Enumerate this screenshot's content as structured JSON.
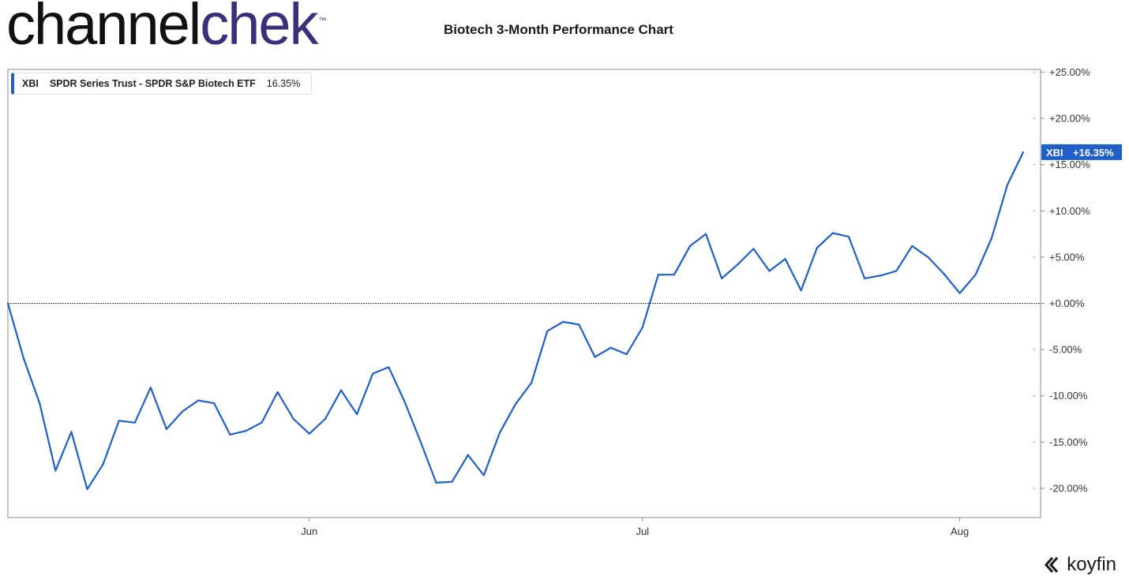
{
  "logo": {
    "part1": "channel",
    "part2": "chek",
    "tm": "™"
  },
  "title": "Biotech 3-Month Performance Chart",
  "brand": "koyfin",
  "colors": {
    "series": "#1f5fc9",
    "logo_dark": "#111111",
    "logo_accent": "#3a2f7a"
  },
  "legend": {
    "ticker": "XBI",
    "name": "SPDR Series Trust - SPDR S&P Biotech ETF",
    "value": "16.35%"
  },
  "chart_data": {
    "type": "line",
    "y_unit": "percent",
    "ylim": [
      -23,
      25.5
    ],
    "yticks": [
      25,
      20,
      15,
      10,
      5,
      0,
      -5,
      -10,
      -15,
      -20
    ],
    "ytick_labels": [
      "+25.00%",
      "+20.00%",
      "+15.00%",
      "+10.00%",
      "+5.00%",
      "+0.00%",
      "-5.00%",
      "-10.00%",
      "-15.00%",
      "-20.00%"
    ],
    "xticks": [
      "Jun",
      "Jul",
      "Aug"
    ],
    "xtick_index": [
      19,
      40,
      60
    ],
    "last_value_label": {
      "ticker": "XBI",
      "value": "+16.35%"
    },
    "series": [
      {
        "name": "XBI",
        "values": [
          0,
          -6.0,
          -10.8,
          -18.1,
          -13.9,
          -20.1,
          -17.4,
          -12.7,
          -12.9,
          -9.1,
          -13.6,
          -11.7,
          -10.5,
          -10.8,
          -14.2,
          -13.8,
          -12.9,
          -9.6,
          -12.5,
          -14.1,
          -12.5,
          -9.4,
          -12.0,
          -7.6,
          -6.9,
          -10.6,
          -14.9,
          -19.4,
          -19.3,
          -16.4,
          -18.6,
          -14.0,
          -10.9,
          -8.6,
          -3.0,
          -2.0,
          -2.3,
          -5.8,
          -4.8,
          -5.5,
          -2.6,
          3.1,
          3.1,
          6.2,
          7.5,
          2.7,
          4.2,
          5.9,
          3.5,
          4.8,
          1.4,
          6.0,
          7.6,
          7.2,
          2.7,
          3.0,
          3.5,
          6.2,
          5.0,
          3.2,
          1.1,
          3.1,
          7.0,
          12.8,
          16.35
        ]
      }
    ]
  }
}
